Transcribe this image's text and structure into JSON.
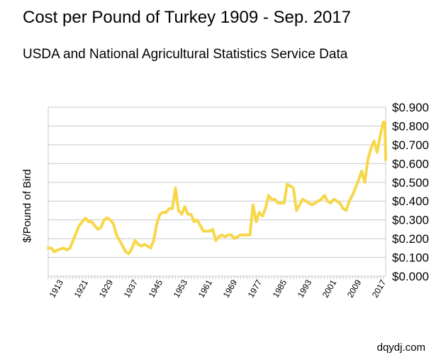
{
  "chart_data": {
    "type": "line",
    "title": "Cost per Pound of Turkey 1909 - Sep. 2017",
    "subtitle": "USDA and National Agricultural Statistics Service Data",
    "ylabel": "$/Pound of Bird",
    "xlabel": "",
    "xlim": [
      1909,
      2017.75
    ],
    "ylim": [
      0,
      0.9
    ],
    "y_axis_side": "right",
    "y_ticks": [
      {
        "value": 0.0,
        "label": "$0.000"
      },
      {
        "value": 0.1,
        "label": "$0.100"
      },
      {
        "value": 0.2,
        "label": "$0.200"
      },
      {
        "value": 0.3,
        "label": "$0.300"
      },
      {
        "value": 0.4,
        "label": "$0.400"
      },
      {
        "value": 0.5,
        "label": "$0.500"
      },
      {
        "value": 0.6,
        "label": "$0.600"
      },
      {
        "value": 0.7,
        "label": "$0.700"
      },
      {
        "value": 0.8,
        "label": "$0.800"
      },
      {
        "value": 0.9,
        "label": "$0.900"
      }
    ],
    "x_tick_labels": [
      "1913",
      "1921",
      "1929",
      "1937",
      "1945",
      "1953",
      "1961",
      "1969",
      "1977",
      "1985",
      "1993",
      "2001",
      "2009",
      "2017"
    ],
    "grid": {
      "horizontal": true,
      "vertical": false
    },
    "legend": "none",
    "line_color": "#f7d74a",
    "axis_color": "#c8c8c8",
    "series": [
      {
        "points": [
          [
            1909,
            0.15
          ],
          [
            1910,
            0.15
          ],
          [
            1911,
            0.13
          ],
          [
            1912,
            0.14
          ],
          [
            1913,
            0.145
          ],
          [
            1914,
            0.15
          ],
          [
            1915,
            0.14
          ],
          [
            1916,
            0.15
          ],
          [
            1917,
            0.19
          ],
          [
            1918,
            0.23
          ],
          [
            1919,
            0.27
          ],
          [
            1920,
            0.29
          ],
          [
            1921,
            0.31
          ],
          [
            1922,
            0.29
          ],
          [
            1923,
            0.29
          ],
          [
            1924,
            0.27
          ],
          [
            1925,
            0.25
          ],
          [
            1926,
            0.26
          ],
          [
            1927,
            0.3
          ],
          [
            1928,
            0.31
          ],
          [
            1929,
            0.3
          ],
          [
            1930,
            0.28
          ],
          [
            1931,
            0.22
          ],
          [
            1932,
            0.19
          ],
          [
            1933,
            0.16
          ],
          [
            1934,
            0.13
          ],
          [
            1935,
            0.12
          ],
          [
            1936,
            0.15
          ],
          [
            1937,
            0.19
          ],
          [
            1938,
            0.17
          ],
          [
            1939,
            0.16
          ],
          [
            1940,
            0.17
          ],
          [
            1941,
            0.16
          ],
          [
            1942,
            0.15
          ],
          [
            1943,
            0.19
          ],
          [
            1944,
            0.28
          ],
          [
            1945,
            0.33
          ],
          [
            1946,
            0.34
          ],
          [
            1947,
            0.34
          ],
          [
            1948,
            0.36
          ],
          [
            1949,
            0.36
          ],
          [
            1950,
            0.47
          ],
          [
            1951,
            0.35
          ],
          [
            1952,
            0.33
          ],
          [
            1953,
            0.37
          ],
          [
            1954,
            0.33
          ],
          [
            1955,
            0.33
          ],
          [
            1956,
            0.29
          ],
          [
            1957,
            0.3
          ],
          [
            1958,
            0.27
          ],
          [
            1959,
            0.24
          ],
          [
            1960,
            0.24
          ],
          [
            1961,
            0.24
          ],
          [
            1962,
            0.25
          ],
          [
            1963,
            0.19
          ],
          [
            1964,
            0.21
          ],
          [
            1965,
            0.22
          ],
          [
            1966,
            0.21
          ],
          [
            1967,
            0.22
          ],
          [
            1968,
            0.22
          ],
          [
            1969,
            0.2
          ],
          [
            1970,
            0.21
          ],
          [
            1971,
            0.22
          ],
          [
            1972,
            0.22
          ],
          [
            1973,
            0.22
          ],
          [
            1974,
            0.22
          ],
          [
            1975,
            0.38
          ],
          [
            1976,
            0.29
          ],
          [
            1977,
            0.34
          ],
          [
            1978,
            0.32
          ],
          [
            1979,
            0.36
          ],
          [
            1980,
            0.43
          ],
          [
            1981,
            0.41
          ],
          [
            1982,
            0.41
          ],
          [
            1983,
            0.39
          ],
          [
            1984,
            0.39
          ],
          [
            1985,
            0.39
          ],
          [
            1986,
            0.49
          ],
          [
            1987,
            0.48
          ],
          [
            1988,
            0.47
          ],
          [
            1989,
            0.35
          ],
          [
            1990,
            0.38
          ],
          [
            1991,
            0.41
          ],
          [
            1992,
            0.4
          ],
          [
            1993,
            0.39
          ],
          [
            1994,
            0.38
          ],
          [
            1995,
            0.39
          ],
          [
            1996,
            0.4
          ],
          [
            1997,
            0.41
          ],
          [
            1998,
            0.43
          ],
          [
            1999,
            0.4
          ],
          [
            2000,
            0.39
          ],
          [
            2001,
            0.41
          ],
          [
            2002,
            0.4
          ],
          [
            2003,
            0.39
          ],
          [
            2004,
            0.36
          ],
          [
            2005,
            0.35
          ],
          [
            2006,
            0.4
          ],
          [
            2007,
            0.43
          ],
          [
            2008,
            0.47
          ],
          [
            2009,
            0.51
          ],
          [
            2010,
            0.56
          ],
          [
            2011,
            0.5
          ],
          [
            2012,
            0.62
          ],
          [
            2013,
            0.68
          ],
          [
            2014,
            0.72
          ],
          [
            2015,
            0.66
          ],
          [
            2016,
            0.75
          ],
          [
            2017,
            0.82
          ],
          [
            2017.5,
            0.82
          ],
          [
            2017.75,
            0.62
          ]
        ]
      }
    ],
    "source": "dqydj.com"
  }
}
